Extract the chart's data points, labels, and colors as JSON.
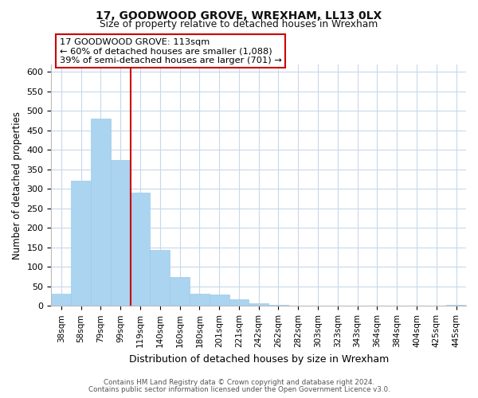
{
  "title": "17, GOODWOOD GROVE, WREXHAM, LL13 0LX",
  "subtitle": "Size of property relative to detached houses in Wrexham",
  "xlabel": "Distribution of detached houses by size in Wrexham",
  "ylabel": "Number of detached properties",
  "bar_values": [
    32,
    322,
    481,
    375,
    291,
    144,
    75,
    31,
    29,
    16,
    7,
    2,
    1,
    1,
    1,
    0,
    0,
    0,
    0,
    0,
    3
  ],
  "bar_labels": [
    "38sqm",
    "58sqm",
    "79sqm",
    "99sqm",
    "119sqm",
    "140sqm",
    "160sqm",
    "180sqm",
    "201sqm",
    "221sqm",
    "242sqm",
    "262sqm",
    "282sqm",
    "303sqm",
    "323sqm",
    "343sqm",
    "364sqm",
    "384sqm",
    "404sqm",
    "425sqm",
    "445sqm"
  ],
  "bar_color": "#aad4f0",
  "bar_edge_color": "#9ecae8",
  "vline_x": 4,
  "vline_color": "#cc0000",
  "annotation_line1": "17 GOODWOOD GROVE: 113sqm",
  "annotation_line2": "← 60% of detached houses are smaller (1,088)",
  "annotation_line3": "39% of semi-detached houses are larger (701) →",
  "ylim": [
    0,
    620
  ],
  "yticks": [
    0,
    50,
    100,
    150,
    200,
    250,
    300,
    350,
    400,
    450,
    500,
    550,
    600
  ],
  "footnote1": "Contains HM Land Registry data © Crown copyright and database right 2024.",
  "footnote2": "Contains public sector information licensed under the Open Government Licence v3.0.",
  "background_color": "#ffffff",
  "grid_color": "#c8d8ec"
}
